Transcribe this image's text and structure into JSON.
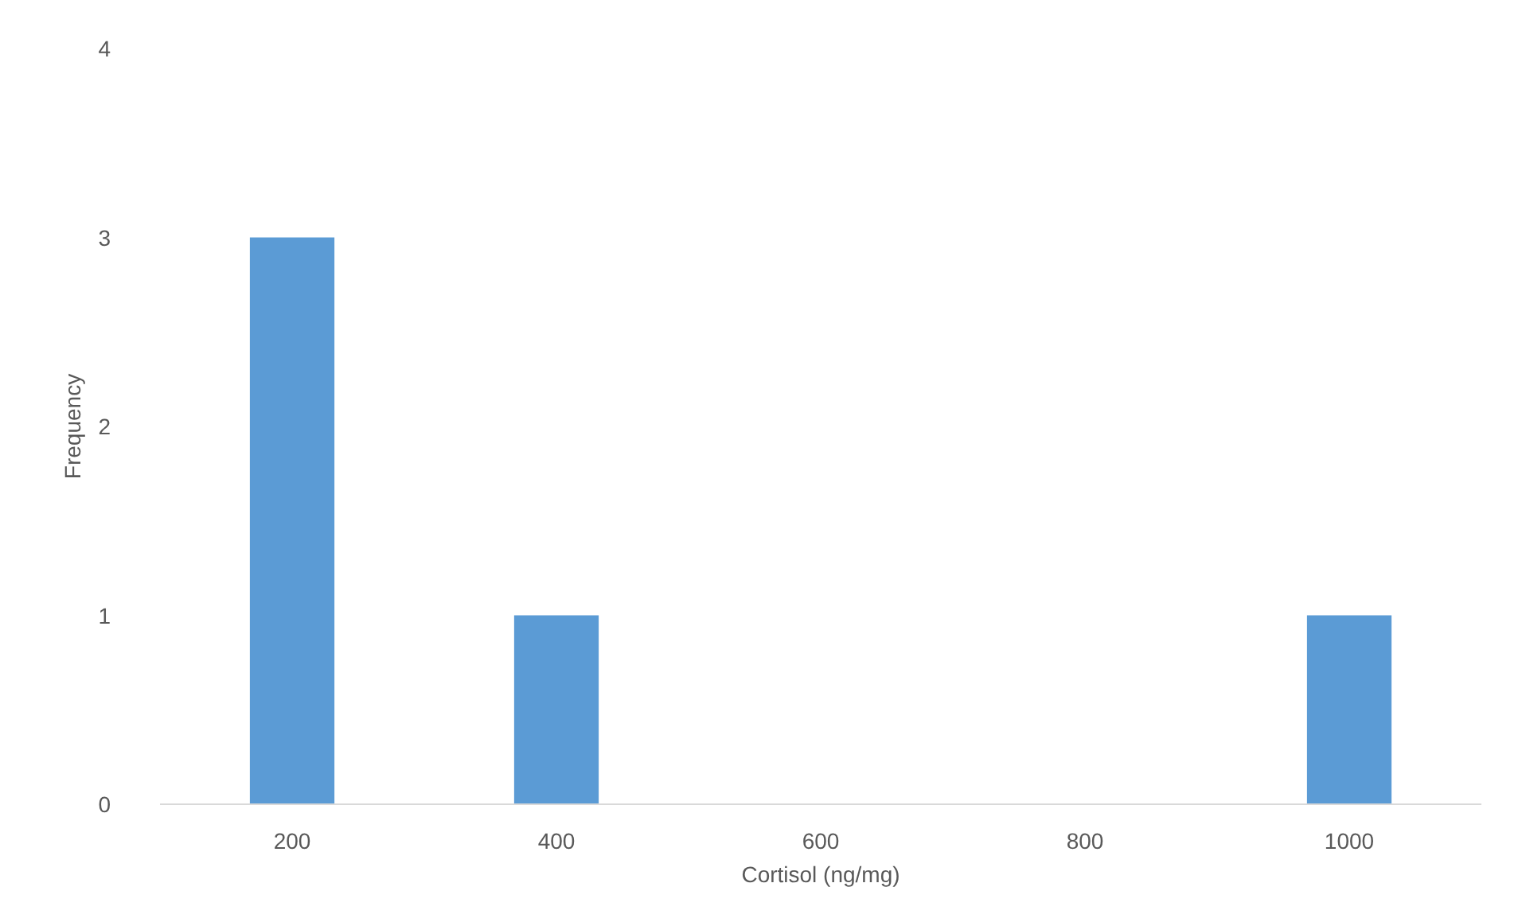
{
  "chart_data": {
    "type": "bar",
    "xlabel": "Cortisol (ng/mg)",
    "ylabel": "Frequency",
    "categories": [
      "200",
      "400",
      "600",
      "800",
      "1000"
    ],
    "values": [
      3,
      1,
      0,
      0,
      1
    ],
    "color": "#5b9bd5",
    "ylim": [
      0,
      4
    ],
    "yticks": [
      0,
      1,
      2,
      3,
      4
    ],
    "grid": false
  }
}
